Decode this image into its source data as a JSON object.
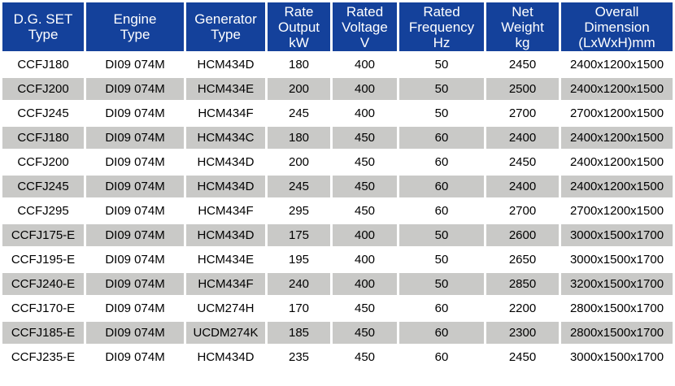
{
  "chart_data": {
    "type": "table",
    "columns": [
      "D.G. SET\nType",
      "Engine\nType",
      "Generator\nType",
      "Rate\nOutput\nkW",
      "Rated\nVoltage\nV",
      "Rated\nFrequency\nHz",
      "Net\nWeight\nkg",
      "Overall\nDimension\n(LxWxH)mm"
    ],
    "rows": [
      [
        "CCFJ180",
        "DI09 074M",
        "HCM434D",
        "180",
        "400",
        "50",
        "2450",
        "2400x1200x1500"
      ],
      [
        "CCFJ200",
        "DI09 074M",
        "HCM434E",
        "200",
        "400",
        "50",
        "2500",
        "2400x1200x1500"
      ],
      [
        "CCFJ245",
        "DI09 074M",
        "HCM434F",
        "245",
        "400",
        "50",
        "2700",
        "2700x1200x1500"
      ],
      [
        "CCFJ180",
        "DI09 074M",
        "HCM434C",
        "180",
        "450",
        "60",
        "2400",
        "2400x1200x1500"
      ],
      [
        "CCFJ200",
        "DI09 074M",
        "HCM434D",
        "200",
        "450",
        "60",
        "2450",
        "2400x1200x1500"
      ],
      [
        "CCFJ245",
        "DI09 074M",
        "HCM434D",
        "245",
        "450",
        "60",
        "2400",
        "2400x1200x1500"
      ],
      [
        "CCFJ295",
        "DI09 074M",
        "HCM434F",
        "295",
        "450",
        "60",
        "2700",
        "2700x1200x1500"
      ],
      [
        "CCFJ175-E",
        "DI09 074M",
        "HCM434D",
        "175",
        "400",
        "50",
        "2600",
        "3000x1500x1700"
      ],
      [
        "CCFJ195-E",
        "DI09 074M",
        "HCM434E",
        "195",
        "400",
        "50",
        "2650",
        "3000x1500x1700"
      ],
      [
        "CCFJ240-E",
        "DI09 074M",
        "HCM434F",
        "240",
        "400",
        "50",
        "2850",
        "3200x1500x1700"
      ],
      [
        "CCFJ170-E",
        "DI09 074M",
        "UCM274H",
        "170",
        "450",
        "60",
        "2200",
        "2800x1500x1700"
      ],
      [
        "CCFJ185-E",
        "DI09 074M",
        "UCDM274K",
        "185",
        "450",
        "60",
        "2300",
        "2800x1500x1700"
      ],
      [
        "CCFJ235-E",
        "DI09 074M",
        "HCM434D",
        "235",
        "450",
        "60",
        "2450",
        "3000x1500x1700"
      ]
    ],
    "layout": {
      "striped": true,
      "stripe_pattern": "even rows gray, odd rows white",
      "grid": "white gutters between cells",
      "header_position": "top"
    }
  },
  "colors": {
    "header_bg": "#14419B",
    "header_text": "#FFFFFF",
    "row_bg": "#FFFFFF",
    "row_alt_bg": "#C9C9C7",
    "body_text": "#000000",
    "separator": "#FFFFFF"
  }
}
